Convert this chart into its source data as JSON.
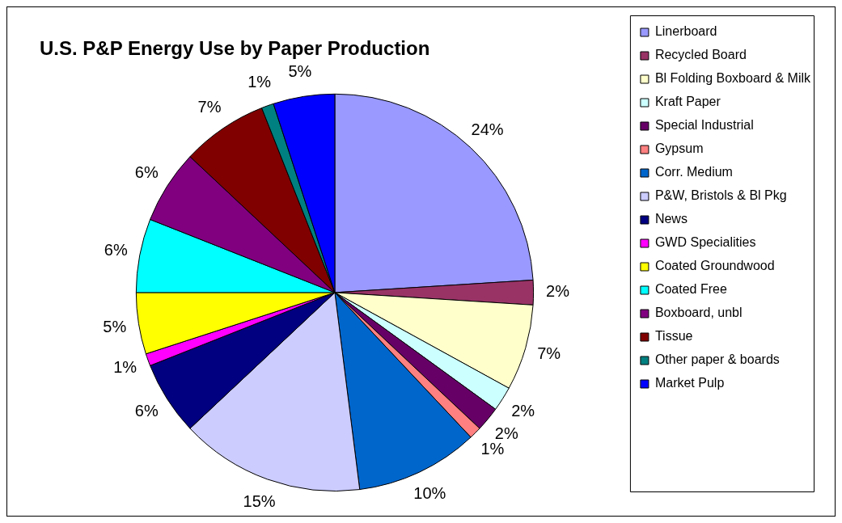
{
  "chart_data": {
    "type": "pie",
    "title": "U.S. P&P Energy Use by Paper Production",
    "categories": [
      "Linerboard",
      "Recycled Board",
      "Bl Folding Boxboard & Milk",
      "Kraft Paper",
      "Special Industrial",
      "Gypsum",
      "Corr. Medium",
      "P&W, Bristols & Bl Pkg",
      "News",
      "GWD Specialities",
      "Coated Groundwood",
      "Coated Free",
      "Boxboard, unbl",
      "Tissue",
      "Other paper & boards",
      "Market Pulp"
    ],
    "values": [
      24,
      2,
      7,
      2,
      2,
      1,
      10,
      15,
      6,
      1,
      5,
      6,
      6,
      7,
      1,
      5
    ],
    "value_labels": [
      "24%",
      "2%",
      "7%",
      "2%",
      "2%",
      "1%",
      "10%",
      "15%",
      "6%",
      "1%",
      "5%",
      "6%",
      "6%",
      "7%",
      "1%",
      "5%"
    ],
    "colors": [
      "#9999ff",
      "#993366",
      "#ffffcc",
      "#ccffff",
      "#660066",
      "#ff8080",
      "#0066cc",
      "#ccccff",
      "#000080",
      "#ff00ff",
      "#ffff00",
      "#00ffff",
      "#800080",
      "#800000",
      "#008080",
      "#0000ff"
    ],
    "legend": "right"
  }
}
